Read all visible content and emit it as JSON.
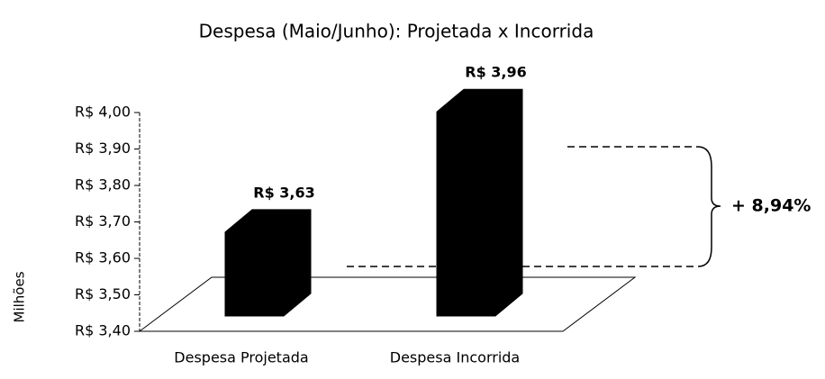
{
  "chart_data": {
    "type": "bar3d",
    "title": "Despesa (Maio/Junho): Projetada x Incorrida",
    "y_axis_label": "Milhões",
    "categories": [
      "Despesa Projetada",
      "Despesa Incorrida"
    ],
    "values": [
      3.63,
      3.96
    ],
    "value_labels": [
      "R$ 3,63",
      "R$ 3,96"
    ],
    "color": "#000000",
    "ylim": [
      3.4,
      4.0
    ],
    "yticks": [
      {
        "value": 3.4,
        "label": "R$ 3,40"
      },
      {
        "value": 3.5,
        "label": "R$ 3,50"
      },
      {
        "value": 3.6,
        "label": "R$ 3,60"
      },
      {
        "value": 3.7,
        "label": "R$ 3,70"
      },
      {
        "value": 3.8,
        "label": "R$ 3,80"
      },
      {
        "value": 3.9,
        "label": "R$ 3,90"
      },
      {
        "value": 4.0,
        "label": "R$ 4,00"
      }
    ],
    "annotation": "+ 8,94%"
  }
}
